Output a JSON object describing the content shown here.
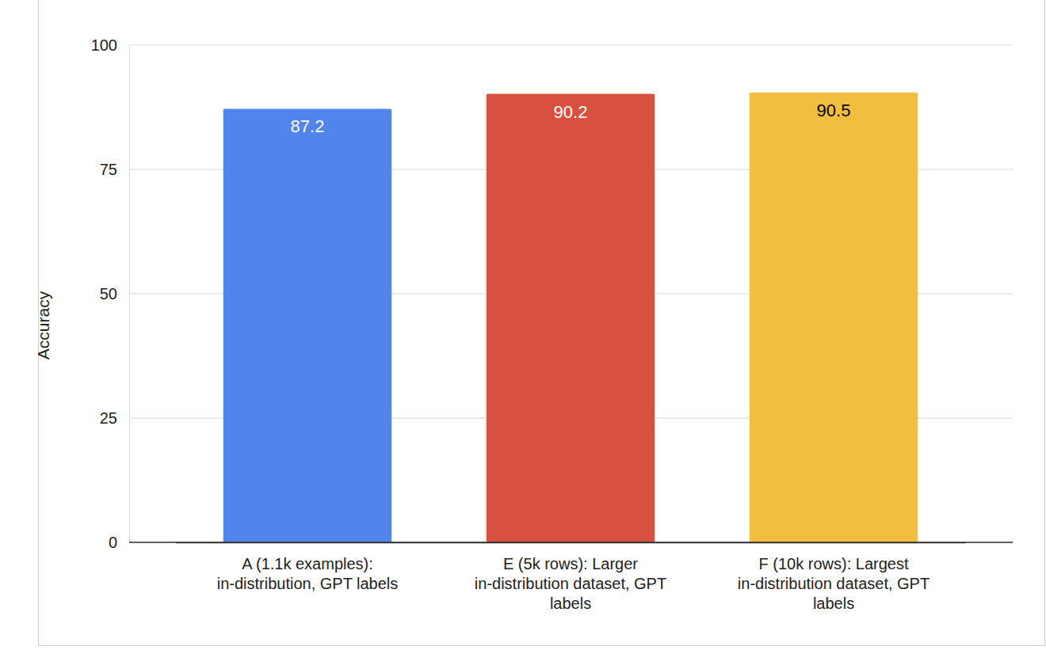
{
  "chart_data": {
    "type": "bar",
    "y_label": "Accuracy",
    "categories": [
      "A (1.1k examples):\nin-distribution, GPT labels",
      "E (5k rows): Larger\nin-distribution dataset, GPT\nlabels",
      "F (10k rows): Largest\nin-distribution dataset, GPT\nlabels"
    ],
    "values": [
      87.2,
      90.2,
      90.5
    ],
    "colors": [
      "#5185ec",
      "#d85140",
      "#f1be42"
    ],
    "ylim": [
      0,
      100
    ],
    "yticks": [
      0,
      25,
      50,
      75,
      100
    ],
    "grid": true,
    "data_labels": true
  }
}
